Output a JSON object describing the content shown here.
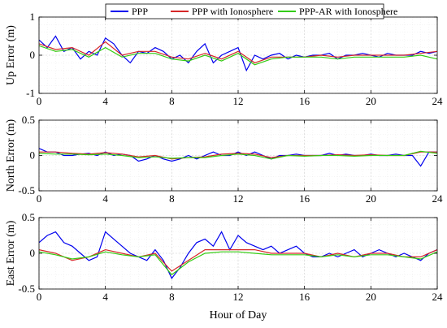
{
  "chart_data": [
    {
      "type": "line",
      "ylabel": "Up Error (m)",
      "xlabel": "",
      "xlim": [
        0,
        24
      ],
      "ylim": [
        -1,
        1
      ],
      "xticks": [
        0,
        4,
        8,
        12,
        16,
        20,
        24
      ],
      "yticks": [
        -1,
        0,
        1
      ],
      "grid": true,
      "series": [
        {
          "name": "PPP",
          "color": "#0000ee",
          "x": [
            0,
            0.5,
            1,
            1.5,
            2,
            2.5,
            3,
            3.5,
            4,
            4.5,
            5,
            5.5,
            6,
            6.5,
            7,
            7.5,
            8,
            8.5,
            9,
            9.5,
            10,
            10.5,
            11,
            11.5,
            12,
            12.5,
            13,
            13.5,
            14,
            14.5,
            15,
            15.5,
            16,
            16.5,
            17,
            17.5,
            18,
            18.5,
            19,
            19.5,
            20,
            20.5,
            21,
            21.5,
            22,
            22.5,
            23,
            23.5,
            24
          ],
          "y": [
            0.4,
            0.2,
            0.5,
            0.1,
            0.2,
            -0.1,
            0.1,
            0.0,
            0.45,
            0.3,
            0.0,
            -0.2,
            0.1,
            0.05,
            0.2,
            0.1,
            -0.1,
            0.0,
            -0.2,
            0.1,
            0.3,
            -0.2,
            0.0,
            0.1,
            0.2,
            -0.4,
            0.0,
            -0.1,
            0.0,
            0.05,
            -0.1,
            0.0,
            -0.05,
            0.0,
            0.0,
            0.05,
            -0.1,
            0.0,
            0.0,
            0.05,
            0.0,
            -0.05,
            0.05,
            0.0,
            0.0,
            0.0,
            0.1,
            0.05,
            0.1
          ]
        },
        {
          "name": "PPP with Ionosphere",
          "color": "#d62728",
          "x": [
            0,
            1,
            2,
            3,
            4,
            5,
            6,
            7,
            8,
            9,
            10,
            11,
            12,
            13,
            14,
            15,
            16,
            17,
            18,
            19,
            20,
            21,
            22,
            23,
            24
          ],
          "y": [
            0.3,
            0.15,
            0.2,
            0.0,
            0.35,
            0.0,
            0.1,
            0.1,
            -0.05,
            -0.1,
            0.05,
            -0.1,
            0.1,
            -0.2,
            -0.05,
            -0.05,
            -0.05,
            0.0,
            -0.05,
            0.0,
            0.0,
            0.0,
            0.0,
            0.05,
            0.1
          ]
        },
        {
          "name": "PPP-AR with Ionosphere",
          "color": "#33cc11",
          "x": [
            0,
            1,
            2,
            3,
            4,
            5,
            6,
            7,
            8,
            9,
            10,
            11,
            12,
            13,
            14,
            15,
            16,
            17,
            18,
            19,
            20,
            21,
            22,
            23,
            24
          ],
          "y": [
            0.25,
            0.1,
            0.15,
            -0.05,
            0.2,
            -0.05,
            0.05,
            0.05,
            -0.1,
            -0.15,
            0.0,
            -0.15,
            0.05,
            -0.25,
            -0.1,
            -0.05,
            -0.05,
            -0.05,
            -0.1,
            -0.05,
            -0.05,
            -0.05,
            -0.05,
            0.0,
            -0.1
          ]
        }
      ]
    },
    {
      "type": "line",
      "ylabel": "North Error (m)",
      "xlabel": "",
      "xlim": [
        0,
        24
      ],
      "ylim": [
        -0.5,
        0.5
      ],
      "xticks": [
        0,
        4,
        8,
        12,
        16,
        20,
        24
      ],
      "yticks": [
        -0.5,
        0,
        0.5
      ],
      "grid": true,
      "series": [
        {
          "name": "PPP",
          "color": "#0000ee",
          "x": [
            0,
            0.5,
            1,
            1.5,
            2,
            2.5,
            3,
            3.5,
            4,
            4.5,
            5,
            5.5,
            6,
            6.5,
            7,
            7.5,
            8,
            8.5,
            9,
            9.5,
            10,
            10.5,
            11,
            11.5,
            12,
            12.5,
            13,
            13.5,
            14,
            14.5,
            15,
            15.5,
            16,
            16.5,
            17,
            17.5,
            18,
            18.5,
            19,
            19.5,
            20,
            20.5,
            21,
            21.5,
            22,
            22.5,
            23,
            23.5,
            24
          ],
          "y": [
            0.1,
            0.05,
            0.05,
            0.0,
            0.0,
            0.02,
            0.03,
            0.0,
            0.05,
            0.0,
            0.02,
            0.0,
            -0.08,
            -0.05,
            0.0,
            -0.05,
            -0.08,
            -0.05,
            0.0,
            -0.05,
            0.0,
            0.05,
            0.0,
            0.0,
            0.05,
            0.0,
            0.05,
            0.0,
            -0.05,
            0.0,
            0.0,
            0.02,
            0.0,
            0.0,
            0.0,
            0.03,
            0.0,
            0.02,
            0.0,
            0.0,
            0.02,
            0.0,
            0.0,
            0.02,
            0.0,
            0.0,
            -0.15,
            0.05,
            0.05
          ]
        },
        {
          "name": "PPP with Ionosphere",
          "color": "#d62728",
          "x": [
            0,
            1,
            2,
            3,
            4,
            5,
            6,
            7,
            8,
            9,
            10,
            11,
            12,
            13,
            14,
            15,
            16,
            17,
            18,
            19,
            20,
            21,
            22,
            23,
            24
          ],
          "y": [
            0.05,
            0.05,
            0.03,
            0.02,
            0.04,
            0.02,
            -0.02,
            0.0,
            -0.05,
            -0.03,
            -0.02,
            0.02,
            0.03,
            0.02,
            -0.03,
            0.0,
            0.0,
            0.0,
            0.01,
            0.0,
            0.01,
            0.0,
            0.0,
            0.05,
            0.05
          ]
        },
        {
          "name": "PPP-AR with Ionosphere",
          "color": "#33cc11",
          "x": [
            0,
            1,
            2,
            3,
            4,
            5,
            6,
            7,
            8,
            9,
            10,
            11,
            12,
            13,
            14,
            15,
            16,
            17,
            18,
            19,
            20,
            21,
            22,
            23,
            24
          ],
          "y": [
            0.03,
            0.02,
            0.02,
            0.01,
            0.02,
            0.0,
            -0.03,
            -0.02,
            -0.04,
            -0.03,
            -0.03,
            0.0,
            0.02,
            0.0,
            -0.05,
            0.0,
            -0.01,
            0.0,
            0.0,
            -0.01,
            0.0,
            0.0,
            0.0,
            0.06,
            0.03
          ]
        }
      ]
    },
    {
      "type": "line",
      "ylabel": "East Error (m)",
      "xlabel": "Hour of Day",
      "xlim": [
        0,
        24
      ],
      "ylim": [
        -0.5,
        0.5
      ],
      "xticks": [
        0,
        4,
        8,
        12,
        16,
        20,
        24
      ],
      "yticks": [
        -0.5,
        0,
        0.5
      ],
      "grid": true,
      "series": [
        {
          "name": "PPP",
          "color": "#0000ee",
          "x": [
            0,
            0.5,
            1,
            1.5,
            2,
            2.5,
            3,
            3.5,
            4,
            4.5,
            5,
            5.5,
            6,
            6.5,
            7,
            7.5,
            8,
            8.5,
            9,
            9.5,
            10,
            10.5,
            11,
            11.5,
            12,
            12.5,
            13,
            13.5,
            14,
            14.5,
            15,
            15.5,
            16,
            16.5,
            17,
            17.5,
            18,
            18.5,
            19,
            19.5,
            20,
            20.5,
            21,
            21.5,
            22,
            22.5,
            23,
            23.5,
            24
          ],
          "y": [
            0.15,
            0.25,
            0.3,
            0.15,
            0.1,
            0.0,
            -0.1,
            -0.05,
            0.3,
            0.2,
            0.1,
            0.0,
            -0.05,
            -0.1,
            0.05,
            -0.1,
            -0.35,
            -0.2,
            0.0,
            0.15,
            0.2,
            0.1,
            0.3,
            0.05,
            0.25,
            0.15,
            0.1,
            0.05,
            0.1,
            0.0,
            0.05,
            0.1,
            0.0,
            -0.05,
            -0.05,
            0.0,
            -0.05,
            0.0,
            0.05,
            -0.05,
            0.0,
            0.05,
            0.0,
            -0.05,
            0.0,
            -0.05,
            -0.1,
            0.0,
            0.05
          ]
        },
        {
          "name": "PPP with Ionosphere",
          "color": "#d62728",
          "x": [
            0,
            1,
            2,
            3,
            4,
            5,
            6,
            7,
            8,
            9,
            10,
            11,
            12,
            13,
            14,
            15,
            16,
            17,
            18,
            19,
            20,
            21,
            22,
            23,
            24
          ],
          "y": [
            0.05,
            0.0,
            -0.1,
            -0.05,
            0.05,
            0.0,
            -0.05,
            0.0,
            -0.25,
            -0.1,
            0.05,
            0.05,
            0.05,
            0.05,
            0.0,
            0.0,
            0.0,
            -0.05,
            0.0,
            -0.05,
            0.0,
            0.0,
            -0.05,
            -0.05,
            0.05
          ]
        },
        {
          "name": "PPP-AR with Ionosphere",
          "color": "#33cc11",
          "x": [
            0,
            1,
            2,
            3,
            4,
            5,
            6,
            7,
            8,
            9,
            10,
            11,
            12,
            13,
            14,
            15,
            16,
            17,
            18,
            19,
            20,
            21,
            22,
            23,
            24
          ],
          "y": [
            0.02,
            -0.02,
            -0.08,
            -0.05,
            0.02,
            -0.02,
            -0.05,
            -0.02,
            -0.3,
            -0.12,
            0.0,
            0.02,
            0.02,
            0.0,
            -0.02,
            -0.02,
            -0.02,
            -0.05,
            -0.02,
            -0.05,
            -0.02,
            -0.02,
            -0.05,
            -0.08,
            0.02
          ]
        }
      ]
    }
  ],
  "legend": {
    "placement": "top-center",
    "entries": [
      "PPP",
      "PPP with Ionosphere",
      "PPP-AR with Ionosphere"
    ]
  }
}
